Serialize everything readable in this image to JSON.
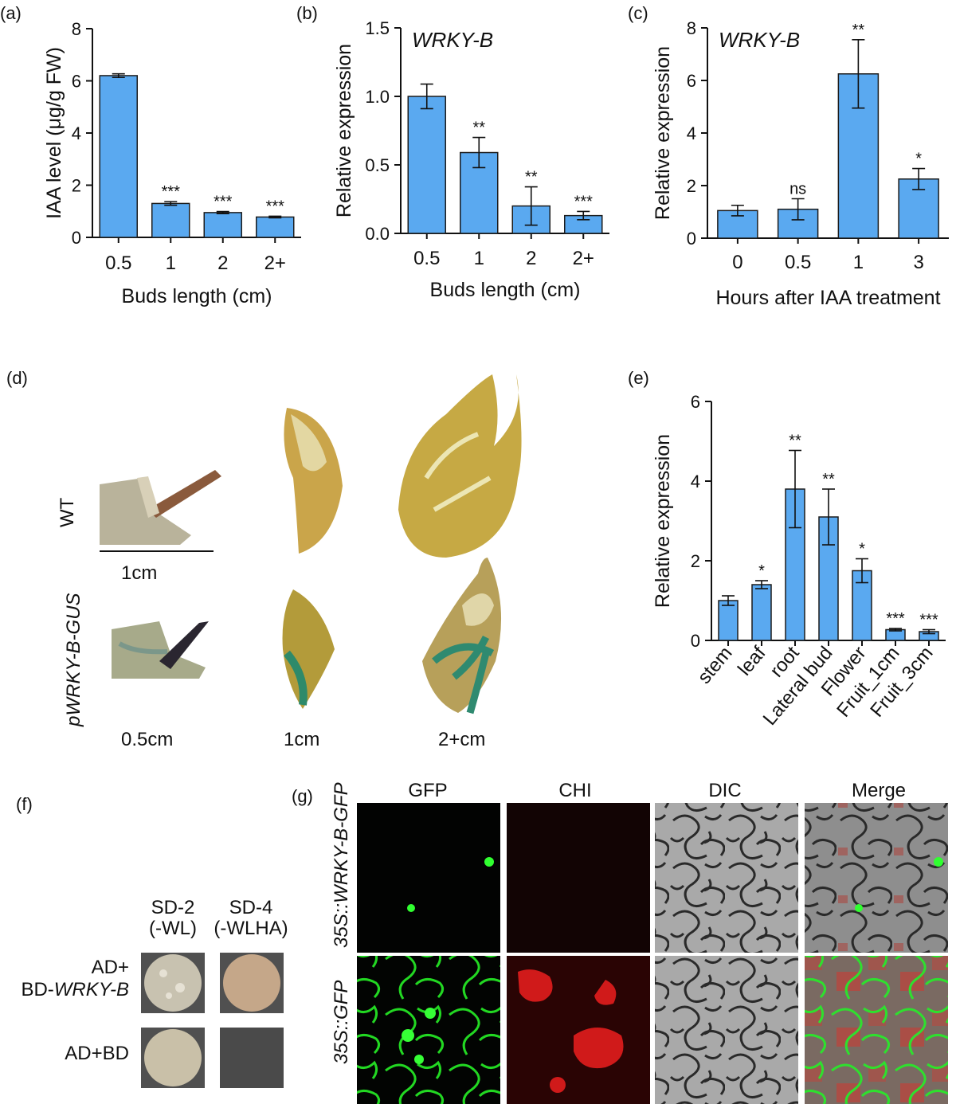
{
  "colors": {
    "bar": "#5aa9f0",
    "bar_edge": "#1c1c1c",
    "axis": "#111111",
    "gfp": "#1ee01e",
    "chi": "#d81818",
    "dic": "#9a9a9a"
  },
  "chart_data": [
    {
      "panel": "(a)",
      "type": "bar",
      "categories": [
        "0.5",
        "1",
        "2",
        "2+"
      ],
      "values": [
        6.2,
        1.3,
        0.95,
        0.78
      ],
      "errors": [
        0.07,
        0.07,
        0.04,
        0.03
      ],
      "significance": [
        "",
        "***",
        "***",
        "***"
      ],
      "xlabel": "Buds length (cm)",
      "ylabel": "IAA level (μg/g FW)",
      "title": "",
      "ylim": [
        0,
        8
      ],
      "yticks": [
        "0",
        "2",
        "4",
        "6",
        "8"
      ]
    },
    {
      "panel": "(b)",
      "type": "bar",
      "categories": [
        "0.5",
        "1",
        "2",
        "2+"
      ],
      "values": [
        1.0,
        0.59,
        0.2,
        0.13
      ],
      "errors": [
        0.09,
        0.11,
        0.14,
        0.03
      ],
      "significance": [
        "",
        "**",
        "**",
        "***"
      ],
      "xlabel": "Buds length (cm)",
      "ylabel": "Relative expression",
      "title": "WRKY-B",
      "ylim": [
        0,
        1.5
      ],
      "yticks": [
        "0.0",
        "0.5",
        "1.0",
        "1.5"
      ]
    },
    {
      "panel": "(c)",
      "type": "bar",
      "categories": [
        "0",
        "0.5",
        "1",
        "3"
      ],
      "values": [
        1.05,
        1.1,
        6.25,
        2.25
      ],
      "errors": [
        0.2,
        0.4,
        1.3,
        0.4
      ],
      "significance": [
        "",
        "ns",
        "**",
        "*"
      ],
      "xlabel": "Hours after IAA treatment",
      "ylabel": "Relative expression",
      "title": "WRKY-B",
      "ylim": [
        0,
        8
      ],
      "yticks": [
        "0",
        "2",
        "4",
        "6",
        "8"
      ]
    },
    {
      "panel": "(e)",
      "type": "bar",
      "categories": [
        "stem",
        "leaf",
        "root",
        "Lateral bud",
        "Flower",
        "Fruit_1cm",
        "Fruit_3cm"
      ],
      "values": [
        1.0,
        1.4,
        3.8,
        3.1,
        1.75,
        0.27,
        0.22
      ],
      "errors": [
        0.12,
        0.1,
        0.97,
        0.7,
        0.3,
        0.03,
        0.05
      ],
      "significance": [
        "",
        "*",
        "**",
        "**",
        "*",
        "***",
        "***"
      ],
      "xlabel": "",
      "ylabel": "Relative expression",
      "title": "",
      "ylim": [
        0,
        6
      ],
      "yticks": [
        "0",
        "2",
        "4",
        "6"
      ]
    }
  ],
  "panel_d": {
    "label": "(d)",
    "row_labels": [
      "WT",
      "pWRKY-B-GUS"
    ],
    "col_labels": [
      "0.5cm",
      "1cm",
      "2+cm"
    ],
    "scale_bar": "1cm"
  },
  "panel_f": {
    "label": "(f)",
    "media": [
      {
        "name": "SD-2",
        "sub": "(-WL)"
      },
      {
        "name": "SD-4",
        "sub": "(-WLHA)"
      }
    ],
    "row1_line1": "AD+",
    "row1_line2_prefix": "BD-",
    "row1_line2_gene": "WRKY-B",
    "row2": "AD+BD"
  },
  "panel_g": {
    "label": "(g)",
    "columns": [
      "GFP",
      "CHI",
      "DIC",
      "Merge"
    ],
    "row1_prefix": "35S::",
    "row1_gene": "WRKY-B-GFP",
    "row2_prefix": "35S::",
    "row2_gene": "GFP"
  }
}
